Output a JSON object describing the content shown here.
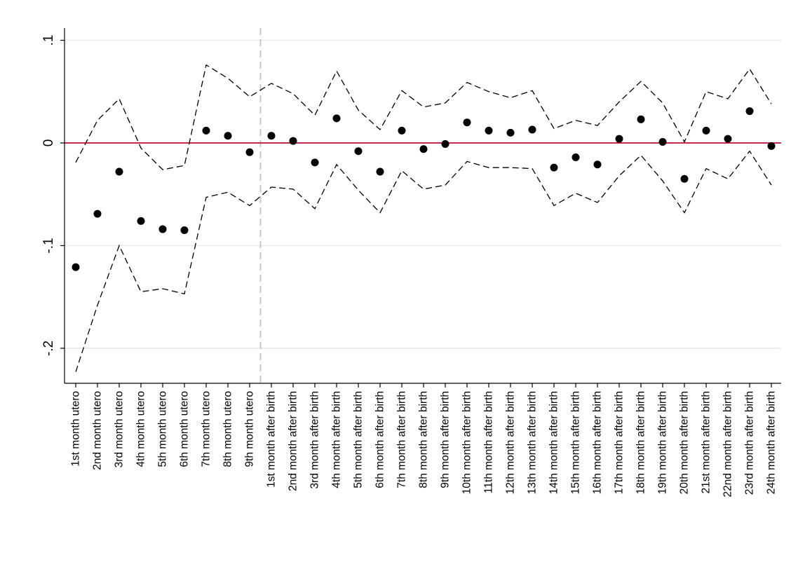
{
  "chart_data": {
    "type": "scatter",
    "title": "",
    "xlabel": "",
    "ylabel": "",
    "categories": [
      "1st month utero",
      "2nd month utero",
      "3rd month utero",
      "4th month utero",
      "5th month utero",
      "6th month utero",
      "7th month utero",
      "8th month utero",
      "9th month utero",
      "1st month after birth",
      "2nd month after birth",
      "3rd month after birth",
      "4th month after birth",
      "5th month after birth",
      "6th month after birth",
      "7th month after birth",
      "8th month after birth",
      "9th month after birth",
      "10th month after birth",
      "11th month after birth",
      "12th month after birth",
      "13th month after birth",
      "14th month after birth",
      "15th month after birth",
      "16th month after birth",
      "17th month after birth",
      "18th month after birth",
      "19th month after birth",
      "20th month after birth",
      "21st month after birth",
      "22nd month after birth",
      "23rd month after birth",
      "24th month after birth"
    ],
    "series": [
      {
        "values": [
          -0.121,
          -0.069,
          -0.028,
          -0.076,
          -0.084,
          -0.085,
          0.012,
          0.007,
          -0.009,
          0.007,
          0.002,
          -0.019,
          0.024,
          -0.008,
          -0.028,
          0.012,
          -0.006,
          -0.001,
          0.02,
          0.012,
          0.01,
          0.013,
          -0.024,
          -0.014,
          -0.021,
          0.004,
          0.023,
          0.001,
          -0.035,
          0.012,
          0.004,
          0.031,
          -0.003
        ]
      },
      {
        "values": [
          -0.019,
          0.022,
          0.043,
          -0.005,
          -0.026,
          -0.022,
          0.076,
          0.063,
          0.045,
          0.058,
          0.048,
          0.027,
          0.07,
          0.032,
          0.013,
          0.051,
          0.035,
          0.039,
          0.059,
          0.05,
          0.044,
          0.051,
          0.014,
          0.022,
          0.017,
          0.04,
          0.06,
          0.039,
          0.001,
          0.05,
          0.043,
          0.072,
          0.038
        ]
      },
      {
        "values": [
          -0.223,
          -0.158,
          -0.1,
          -0.145,
          -0.142,
          -0.147,
          -0.053,
          -0.048,
          -0.061,
          -0.043,
          -0.045,
          -0.064,
          -0.021,
          -0.046,
          -0.068,
          -0.027,
          -0.045,
          -0.041,
          -0.018,
          -0.024,
          -0.024,
          -0.025,
          -0.061,
          -0.049,
          -0.058,
          -0.032,
          -0.012,
          -0.037,
          -0.068,
          -0.025,
          -0.035,
          -0.008,
          -0.041
        ]
      }
    ],
    "yticks": [
      {
        "value": 0.1,
        "label": ".1"
      },
      {
        "value": 0,
        "label": "0"
      },
      {
        "value": -0.1,
        "label": "-.1"
      },
      {
        "value": -0.2,
        "label": "-.2"
      }
    ],
    "ylim": [
      -0.232,
      0.11
    ],
    "grid": true,
    "reference_line_y": 0,
    "vertical_reference_between": [
      8,
      9
    ],
    "colors": {
      "points": "#000000",
      "ci": "#000000",
      "zero_line": "#c8274f",
      "vertical_line": "#c8c8c8",
      "grid": "#e4ecec",
      "axis": "#000000"
    },
    "legend": "none"
  }
}
